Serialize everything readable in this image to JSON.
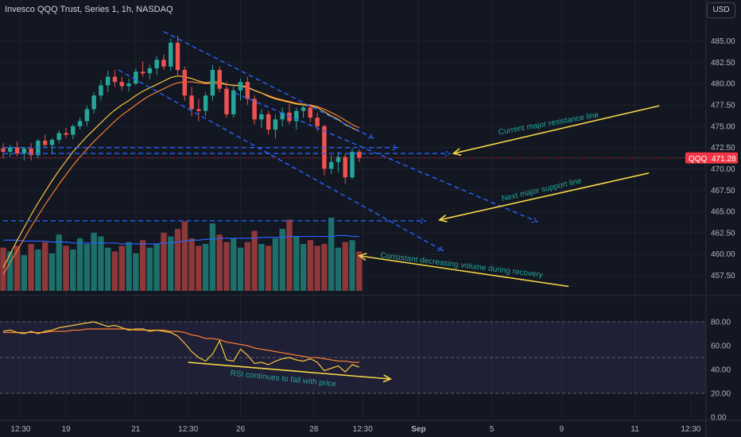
{
  "header": {
    "title": "Invesco QQQ Trust, Series 1, 1h, NASDAQ",
    "currency_button": "USD"
  },
  "chart_data": {
    "type": "candlestick",
    "symbol": "QQQ",
    "last_price": "471.28",
    "colors": {
      "up": "#26a69a",
      "down": "#ef5350",
      "volume_up": "#1d6f6a",
      "volume_down": "#8f3839",
      "ma_fast": "#f5c542",
      "ma_slow": "#f57c36",
      "volume_ma": "#2962ff",
      "rsi": "#f5c542",
      "rsi_ma": "#f57c36",
      "trendline": "#2962ff",
      "arrow": "#f5d547",
      "annotation_text": "#22a79a",
      "price_tag": "#f23645"
    },
    "price_axis": {
      "min": 455.5,
      "max": 487.2,
      "ticks": [
        "485.00",
        "482.50",
        "480.00",
        "477.50",
        "475.00",
        "472.50",
        "470.00",
        "467.50",
        "465.00",
        "462.50",
        "460.00",
        "457.50"
      ]
    },
    "rsi_axis": {
      "min": 0,
      "max": 100,
      "ticks": [
        "80.00",
        "60.00",
        "40.00",
        "20.00",
        "0.00"
      ],
      "bands": [
        80,
        50,
        20
      ]
    },
    "x_axis": {
      "start": 0,
      "end": 100,
      "ticks": [
        {
          "label": "12:30",
          "t": 2.5
        },
        {
          "label": "19",
          "t": 9.0
        },
        {
          "label": "21",
          "t": 19.0
        },
        {
          "label": "12:30",
          "t": 26.5
        },
        {
          "label": "26",
          "t": 34.0
        },
        {
          "label": "28",
          "t": 44.5
        },
        {
          "label": "12:30",
          "t": 51.5
        },
        {
          "label": "Sep",
          "t": 59.5
        },
        {
          "label": "5",
          "t": 70.0
        },
        {
          "label": "9",
          "t": 80.0
        },
        {
          "label": "11",
          "t": 90.5
        },
        {
          "label": "12:30",
          "t": 98.5
        }
      ]
    },
    "candles": [
      {
        "t": 0,
        "o": 472.4,
        "h": 473.0,
        "l": 471.2,
        "c": 472.0
      },
      {
        "t": 1,
        "o": 472.0,
        "h": 472.8,
        "l": 471.4,
        "c": 472.5
      },
      {
        "t": 2,
        "o": 472.5,
        "h": 473.2,
        "l": 471.5,
        "c": 471.8
      },
      {
        "t": 3,
        "o": 471.8,
        "h": 472.6,
        "l": 471.0,
        "c": 472.4
      },
      {
        "t": 4,
        "o": 472.4,
        "h": 473.0,
        "l": 471.0,
        "c": 471.6
      },
      {
        "t": 5,
        "o": 471.6,
        "h": 473.5,
        "l": 471.2,
        "c": 473.3
      },
      {
        "t": 6,
        "o": 473.3,
        "h": 474.0,
        "l": 472.5,
        "c": 472.8
      },
      {
        "t": 7,
        "o": 472.8,
        "h": 473.6,
        "l": 471.8,
        "c": 473.4
      },
      {
        "t": 8,
        "o": 473.4,
        "h": 474.5,
        "l": 473.0,
        "c": 474.2
      },
      {
        "t": 9,
        "o": 474.2,
        "h": 474.8,
        "l": 473.6,
        "c": 474.0
      },
      {
        "t": 10,
        "o": 474.0,
        "h": 475.2,
        "l": 473.5,
        "c": 475.0
      },
      {
        "t": 11,
        "o": 475.0,
        "h": 476.0,
        "l": 474.6,
        "c": 475.6
      },
      {
        "t": 12,
        "o": 475.6,
        "h": 477.4,
        "l": 475.0,
        "c": 477.0
      },
      {
        "t": 13,
        "o": 477.0,
        "h": 479.0,
        "l": 476.5,
        "c": 478.6
      },
      {
        "t": 14,
        "o": 478.6,
        "h": 480.4,
        "l": 478.0,
        "c": 479.8
      },
      {
        "t": 15,
        "o": 479.8,
        "h": 481.5,
        "l": 479.0,
        "c": 480.8
      },
      {
        "t": 16,
        "o": 480.8,
        "h": 481.6,
        "l": 479.6,
        "c": 480.2
      },
      {
        "t": 17,
        "o": 480.2,
        "h": 480.8,
        "l": 479.2,
        "c": 479.7
      },
      {
        "t": 18,
        "o": 479.7,
        "h": 480.6,
        "l": 479.1,
        "c": 480.0
      },
      {
        "t": 19,
        "o": 480.0,
        "h": 481.8,
        "l": 479.8,
        "c": 481.4
      },
      {
        "t": 20,
        "o": 481.4,
        "h": 482.6,
        "l": 480.8,
        "c": 481.2
      },
      {
        "t": 21,
        "o": 481.2,
        "h": 482.2,
        "l": 480.5,
        "c": 481.8
      },
      {
        "t": 22,
        "o": 481.8,
        "h": 483.2,
        "l": 481.0,
        "c": 482.8
      },
      {
        "t": 23,
        "o": 482.8,
        "h": 483.4,
        "l": 481.6,
        "c": 482.0
      },
      {
        "t": 24,
        "o": 482.0,
        "h": 485.3,
        "l": 481.5,
        "c": 484.8
      },
      {
        "t": 25,
        "o": 484.8,
        "h": 485.6,
        "l": 481.0,
        "c": 481.6
      },
      {
        "t": 26,
        "o": 481.6,
        "h": 482.0,
        "l": 478.0,
        "c": 478.6
      },
      {
        "t": 27,
        "o": 478.6,
        "h": 479.6,
        "l": 476.2,
        "c": 477.0
      },
      {
        "t": 28,
        "o": 477.0,
        "h": 478.2,
        "l": 475.6,
        "c": 476.8
      },
      {
        "t": 29,
        "o": 476.8,
        "h": 479.0,
        "l": 476.2,
        "c": 478.6
      },
      {
        "t": 30,
        "o": 478.6,
        "h": 482.2,
        "l": 478.0,
        "c": 481.6
      },
      {
        "t": 31,
        "o": 481.6,
        "h": 482.0,
        "l": 479.0,
        "c": 479.4
      },
      {
        "t": 32,
        "o": 479.4,
        "h": 480.2,
        "l": 476.0,
        "c": 476.4
      },
      {
        "t": 33,
        "o": 476.4,
        "h": 479.8,
        "l": 476.0,
        "c": 479.2
      },
      {
        "t": 34,
        "o": 479.2,
        "h": 480.6,
        "l": 478.0,
        "c": 480.2
      },
      {
        "t": 35,
        "o": 480.2,
        "h": 480.8,
        "l": 477.5,
        "c": 478.2
      },
      {
        "t": 36,
        "o": 478.2,
        "h": 478.6,
        "l": 475.2,
        "c": 475.8
      },
      {
        "t": 37,
        "o": 475.8,
        "h": 477.0,
        "l": 474.8,
        "c": 476.4
      },
      {
        "t": 38,
        "o": 476.4,
        "h": 476.8,
        "l": 474.0,
        "c": 474.6
      },
      {
        "t": 39,
        "o": 474.6,
        "h": 476.4,
        "l": 473.6,
        "c": 475.8
      },
      {
        "t": 40,
        "o": 475.8,
        "h": 477.2,
        "l": 475.0,
        "c": 476.6
      },
      {
        "t": 41,
        "o": 476.6,
        "h": 477.6,
        "l": 475.2,
        "c": 475.6
      },
      {
        "t": 42,
        "o": 475.6,
        "h": 477.2,
        "l": 474.6,
        "c": 476.8
      },
      {
        "t": 43,
        "o": 476.8,
        "h": 477.6,
        "l": 476.0,
        "c": 477.2
      },
      {
        "t": 44,
        "o": 477.2,
        "h": 477.6,
        "l": 475.5,
        "c": 476.0
      },
      {
        "t": 45,
        "o": 476.0,
        "h": 476.6,
        "l": 474.4,
        "c": 475.0
      },
      {
        "t": 46,
        "o": 475.0,
        "h": 475.2,
        "l": 469.2,
        "c": 470.0
      },
      {
        "t": 47,
        "o": 470.0,
        "h": 471.6,
        "l": 469.4,
        "c": 470.8
      },
      {
        "t": 48,
        "o": 470.8,
        "h": 472.0,
        "l": 469.6,
        "c": 471.4
      },
      {
        "t": 49,
        "o": 471.4,
        "h": 471.8,
        "l": 468.2,
        "c": 469.0
      },
      {
        "t": 50,
        "o": 469.0,
        "h": 472.4,
        "l": 468.8,
        "c": 472.0
      },
      {
        "t": 51,
        "o": 472.0,
        "h": 472.3,
        "l": 470.8,
        "c": 471.3
      }
    ],
    "volume": [
      46,
      42,
      48,
      38,
      50,
      44,
      52,
      40,
      60,
      48,
      44,
      56,
      50,
      62,
      58,
      46,
      42,
      48,
      52,
      40,
      54,
      46,
      50,
      62,
      58,
      66,
      74,
      56,
      48,
      50,
      72,
      60,
      52,
      56,
      46,
      52,
      64,
      50,
      48,
      56,
      66,
      76,
      58,
      50,
      54,
      48,
      50,
      78,
      46,
      52,
      54,
      42
    ],
    "volume_ma": [
      54,
      54,
      54,
      53,
      53,
      53,
      53,
      52,
      52,
      52,
      51,
      51,
      51,
      51,
      51,
      51,
      51,
      50,
      50,
      50,
      50,
      50,
      50,
      51,
      51,
      52,
      53,
      54,
      54,
      55,
      55,
      56,
      56,
      56,
      56,
      56,
      56,
      57,
      57,
      57,
      57,
      58,
      58,
      58,
      58,
      58,
      58,
      58,
      59,
      59,
      58,
      58
    ],
    "ma_fast": [
      458.4,
      460.0,
      461.6,
      463.1,
      464.6,
      466.0,
      467.3,
      468.6,
      469.8,
      470.9,
      472.0,
      472.9,
      473.8,
      474.6,
      475.4,
      476.2,
      476.9,
      477.5,
      478.0,
      478.6,
      479.1,
      479.5,
      479.9,
      480.3,
      480.7,
      480.9,
      480.8,
      480.6,
      480.3,
      480.1,
      480.2,
      480.2,
      479.9,
      479.8,
      479.8,
      479.6,
      479.2,
      478.9,
      478.5,
      478.2,
      478.0,
      477.8,
      477.6,
      477.5,
      477.4,
      477.2,
      476.7,
      476.2,
      475.8,
      475.2,
      474.8,
      474.4
    ],
    "ma_slow": [
      457.6,
      459.0,
      460.4,
      461.8,
      463.2,
      464.5,
      465.8,
      467.0,
      468.2,
      469.3,
      470.4,
      471.4,
      472.3,
      473.2,
      474.0,
      474.8,
      475.6,
      476.3,
      476.9,
      477.5,
      478.1,
      478.6,
      479.0,
      479.4,
      479.8,
      480.1,
      480.2,
      480.2,
      480.1,
      480.0,
      480.0,
      480.0,
      479.9,
      479.8,
      479.7,
      479.5,
      479.2,
      478.9,
      478.6,
      478.3,
      478.1,
      477.9,
      477.7,
      477.6,
      477.5,
      477.3,
      477.0,
      476.6,
      476.2,
      475.7,
      475.2,
      474.8
    ],
    "rsi": [
      72,
      73,
      71,
      70,
      72,
      70,
      72,
      73,
      75,
      76,
      77,
      78,
      79,
      80,
      78,
      76,
      77,
      75,
      73,
      74,
      74,
      72,
      73,
      72,
      71,
      68,
      62,
      55,
      50,
      47,
      53,
      64,
      48,
      47,
      57,
      52,
      45,
      46,
      44,
      47,
      49,
      50,
      48,
      47,
      49,
      46,
      39,
      41,
      43,
      38,
      44,
      42
    ],
    "rsi_ma": [
      71,
      71,
      71,
      71,
      71,
      71,
      71,
      72,
      72,
      72,
      73,
      73,
      74,
      74,
      74,
      74,
      74,
      74,
      74,
      73,
      73,
      73,
      73,
      73,
      72,
      72,
      71,
      69,
      68,
      66,
      66,
      65,
      63,
      62,
      61,
      60,
      58,
      57,
      56,
      55,
      54,
      53,
      52,
      51,
      50,
      50,
      49,
      48,
      47,
      47,
      46,
      46
    ],
    "trendlines": [
      {
        "t1": 23.0,
        "p1": 486.1,
        "t2": 53.0,
        "p2": 473.6
      },
      {
        "t1": 16.5,
        "p1": 481.6,
        "t2": 63.0,
        "p2": 460.4
      },
      {
        "t1": 33.2,
        "p1": 478.9,
        "t2": 76.5,
        "p2": 463.8
      },
      {
        "t1": 0,
        "p1": 472.5,
        "t2": 56.5,
        "p2": 472.5
      },
      {
        "t1": 0,
        "p1": 471.8,
        "t2": 64.0,
        "p2": 471.8
      },
      {
        "t1": 0,
        "p1": 463.9,
        "t2": 60.5,
        "p2": 463.9
      }
    ],
    "annotations": [
      {
        "text": "Current major resistance line",
        "t": 71.0,
        "p": 474.0,
        "angle": -10
      },
      {
        "text": "Next major support line",
        "t": 71.5,
        "p": 466.2,
        "angle": -13
      },
      {
        "text": "Consistant decreasing volume during recovery",
        "t": 54.0,
        "p": 459.6,
        "angle": 7
      },
      {
        "text": "RSI continues to fall with price",
        "t": 32.5,
        "rsi": 35,
        "angle": 6
      }
    ],
    "arrows": [
      {
        "from_t": 94.0,
        "from_p": 477.4,
        "to_t": 64.5,
        "to_p": 471.8
      },
      {
        "from_t": 92.5,
        "from_p": 469.5,
        "to_t": 62.5,
        "to_p": 464.0
      },
      {
        "from_t": 81.0,
        "from_p": 456.2,
        "to_t": 51.0,
        "to_p": 459.8
      },
      {
        "from_t": 26.5,
        "from_rsi": 46,
        "to_t": 55.5,
        "to_rsi": 32
      }
    ]
  }
}
